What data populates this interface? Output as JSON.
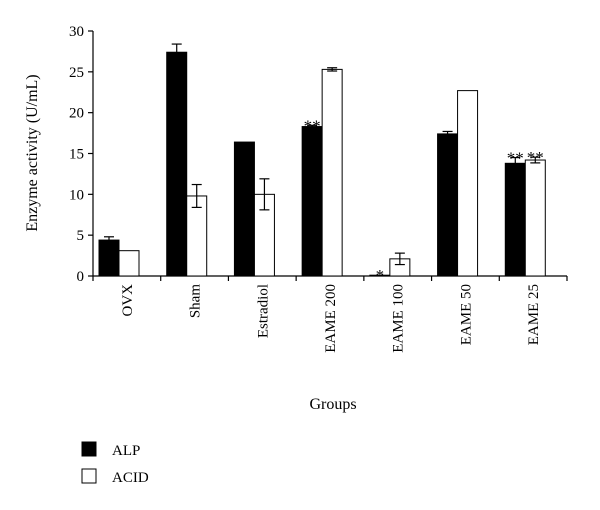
{
  "chart_data": {
    "type": "bar",
    "xlabel": "Groups",
    "ylabel": "Enzyme activity (U/mL)",
    "ylim": [
      0,
      30
    ],
    "yticks": [
      0,
      5,
      10,
      15,
      20,
      25,
      30
    ],
    "grid": false,
    "legend_position": "bottom-left",
    "categories": [
      "OVX",
      "Sham",
      "Estradiol",
      "EAME 200",
      "EAME 100",
      "EAME 50",
      "EAME 25"
    ],
    "series": [
      {
        "name": "ALP",
        "color": "#000000",
        "values": [
          4.4,
          27.4,
          16.4,
          18.3,
          0.1,
          17.4,
          13.8
        ],
        "errors": [
          0.4,
          1.0,
          0.0,
          0.15,
          0.0,
          0.3,
          0.7
        ],
        "markers": [
          "",
          "",
          "",
          "**",
          "*",
          "",
          "**"
        ]
      },
      {
        "name": "ACID",
        "color": "#ffffff",
        "values": [
          3.1,
          9.8,
          10.0,
          25.3,
          2.1,
          22.7,
          14.2
        ],
        "errors": [
          0.0,
          1.4,
          1.9,
          0.2,
          0.7,
          0.0,
          0.35
        ],
        "markers": [
          "",
          "",
          "",
          "",
          "",
          "",
          "**"
        ]
      }
    ]
  }
}
